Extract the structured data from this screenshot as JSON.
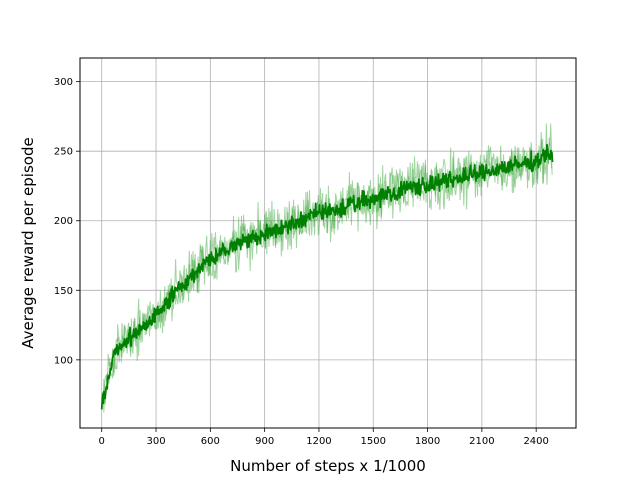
{
  "chart_data": {
    "type": "line",
    "title": "",
    "xlabel": "Number of steps x 1/1000",
    "ylabel": "Average reward per episode",
    "xlim": [
      -120,
      2620
    ],
    "ylim": [
      51,
      317
    ],
    "x_ticks": [
      0,
      300,
      600,
      900,
      1200,
      1500,
      1800,
      2100,
      2400
    ],
    "y_ticks": [
      100,
      150,
      200,
      250,
      300
    ],
    "x_tick_labels": [
      "0",
      "300",
      "600",
      "900",
      "1200",
      "1500",
      "1800",
      "2100",
      "2400"
    ],
    "y_tick_labels": [
      "100",
      "150",
      "200",
      "250",
      "300"
    ],
    "grid": true,
    "legend": false,
    "colors": {
      "mean": "#008000",
      "band": "#2ca02c"
    },
    "series": [
      {
        "role": "mean",
        "x": [
          0,
          25,
          50,
          75,
          100,
          150,
          200,
          250,
          300,
          350,
          400,
          450,
          500,
          550,
          600,
          650,
          700,
          750,
          800,
          900,
          1000,
          1100,
          1200,
          1300,
          1400,
          1500,
          1600,
          1700,
          1800,
          1900,
          2000,
          2100,
          2200,
          2300,
          2400,
          2450,
          2490
        ],
        "y": [
          70,
          80,
          95,
          105,
          110,
          115,
          120,
          125,
          133,
          140,
          148,
          155,
          160,
          168,
          172,
          176,
          180,
          183,
          186,
          190,
          195,
          200,
          206,
          208,
          212,
          216,
          220,
          224,
          226,
          228,
          232,
          234,
          238,
          240,
          243,
          248,
          248
        ],
        "noise_amplitude": 6
      },
      {
        "role": "band",
        "x": [
          0,
          25,
          50,
          75,
          100,
          150,
          200,
          250,
          300,
          350,
          400,
          450,
          500,
          550,
          600,
          650,
          700,
          750,
          800,
          900,
          1000,
          1100,
          1200,
          1300,
          1400,
          1500,
          1600,
          1700,
          1800,
          1900,
          2000,
          2100,
          2200,
          2300,
          2400,
          2450,
          2490
        ],
        "y": [
          70,
          80,
          95,
          105,
          110,
          115,
          120,
          125,
          133,
          140,
          148,
          155,
          160,
          168,
          172,
          176,
          180,
          183,
          186,
          190,
          195,
          200,
          206,
          208,
          212,
          216,
          220,
          224,
          226,
          228,
          232,
          234,
          238,
          240,
          243,
          248,
          248
        ],
        "noise_amplitude": 18
      }
    ]
  }
}
